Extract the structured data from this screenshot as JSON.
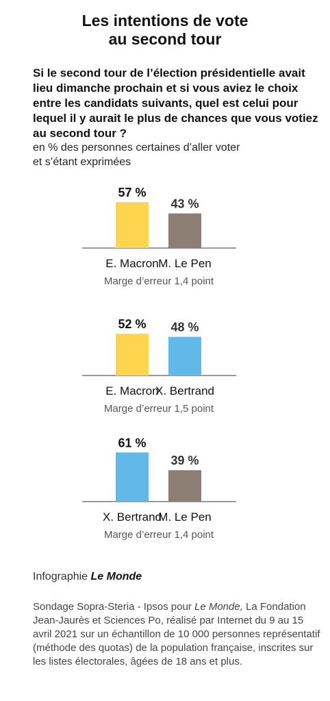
{
  "header": {
    "title_line1": "Les intentions de vote",
    "title_line2": "au second tour"
  },
  "question": "Si le second tour de l’élection présidentielle avait lieu dimanche prochain et si vous aviez le choix entre les candidats suivants, quel est celui pour lequel il y aurait le plus de chances que vous votiez au second tour ?",
  "subtitle_line1": "en % des personnes certaines d’aller voter",
  "subtitle_line2": "et s’étant exprimées",
  "colors": {
    "macron": "#FFD54F",
    "lepen": "#8D7E74",
    "bertrand": "#62B8E8"
  },
  "chart_data": [
    {
      "type": "bar",
      "categories": [
        "E. Macron",
        "M. Le Pen"
      ],
      "values": [
        57,
        43
      ],
      "value_labels": [
        "57 %",
        "43 %"
      ],
      "colors": [
        "#FFD54F",
        "#8D7E74"
      ],
      "note": "Marge d’erreur 1,4 point"
    },
    {
      "type": "bar",
      "categories": [
        "E. Macron",
        "X. Bertrand"
      ],
      "values": [
        52,
        48
      ],
      "value_labels": [
        "52 %",
        "48 %"
      ],
      "colors": [
        "#FFD54F",
        "#62B8E8"
      ],
      "note": "Marge d’erreur 1,5 point"
    },
    {
      "type": "bar",
      "categories": [
        "X. Bertrand",
        "M. Le Pen"
      ],
      "values": [
        61,
        39
      ],
      "value_labels": [
        "61 %",
        "39 %"
      ],
      "colors": [
        "#62B8E8",
        "#8D7E74"
      ],
      "note": "Marge d’erreur 1,4 point"
    }
  ],
  "credit": {
    "prefix": "Infographie ",
    "brand": "Le Monde"
  },
  "source": {
    "part1": "Sondage Sopra-Steria - Ipsos pour ",
    "brand": "Le Monde,",
    "part2": " La Fondation Jean-Jaurès et Sciences Po, réalisé par Internet du 9 au 15 avril 2021 sur un échantillon de 10 000 personnes représentatif (méthode des quotas) de la population française, inscrites sur les listes électorales, âgées de 18 ans et plus."
  }
}
